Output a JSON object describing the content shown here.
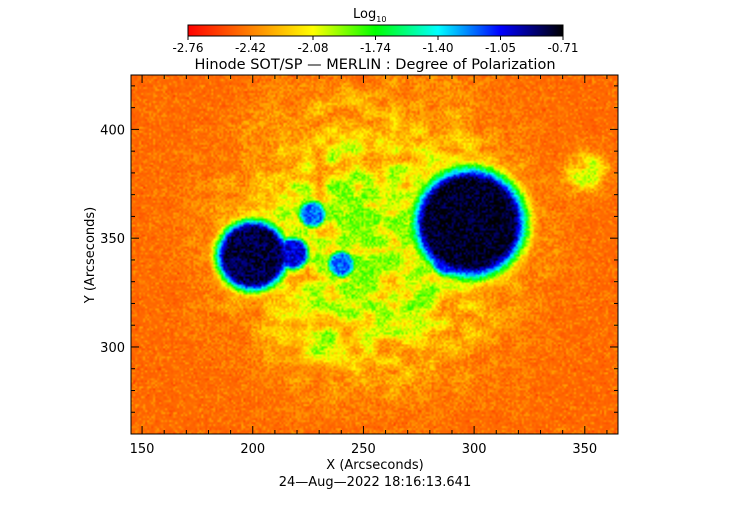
{
  "colorbar": {
    "label": "Log",
    "label_subscript": "10",
    "ticks": [
      "-2.76",
      "-2.42",
      "-2.08",
      "-1.74",
      "-1.40",
      "-1.05",
      "-0.71"
    ],
    "range": [
      -2.76,
      -0.71
    ],
    "colormap": [
      "#ff0000",
      "#ff8000",
      "#ffff00",
      "#00ff00",
      "#00ffff",
      "#0000ff",
      "#000000"
    ]
  },
  "chart_data": {
    "type": "heatmap",
    "title": "Hinode SOT/SP — MERLIN : Degree of Polarization",
    "xlabel": "X (Arcseconds)",
    "ylabel": "Y (Arcseconds)",
    "xlim": [
      145,
      365
    ],
    "ylim": [
      260,
      425
    ],
    "x_ticks": [
      150,
      200,
      250,
      300,
      350
    ],
    "y_ticks": [
      300,
      350,
      400
    ],
    "x_tick_labels": [
      "150",
      "200",
      "250",
      "300",
      "350"
    ],
    "y_tick_labels": [
      "300",
      "350",
      "400"
    ],
    "background_level": -2.6,
    "features": [
      {
        "kind": "sunspot",
        "x": 298,
        "y": 357,
        "radius": 19,
        "peak": -0.75
      },
      {
        "kind": "sunspot",
        "x": 200,
        "y": 342,
        "radius": 12,
        "peak": -0.8
      },
      {
        "kind": "pore",
        "x": 218,
        "y": 343,
        "radius": 5,
        "peak": -1.0
      },
      {
        "kind": "pore",
        "x": 227,
        "y": 361,
        "radius": 4,
        "peak": -1.2
      },
      {
        "kind": "pore",
        "x": 288,
        "y": 340,
        "radius": 5,
        "peak": -1.1
      },
      {
        "kind": "pore",
        "x": 240,
        "y": 338,
        "radius": 4,
        "peak": -1.2
      },
      {
        "kind": "plage",
        "x": 255,
        "y": 350,
        "radius": 45,
        "peak": -1.9
      },
      {
        "kind": "plage",
        "x": 230,
        "y": 305,
        "radius": 10,
        "peak": -1.9
      },
      {
        "kind": "plage",
        "x": 350,
        "y": 380,
        "radius": 8,
        "peak": -2.0
      }
    ],
    "date_label": "24—Aug—2022 18:16:13.641"
  }
}
